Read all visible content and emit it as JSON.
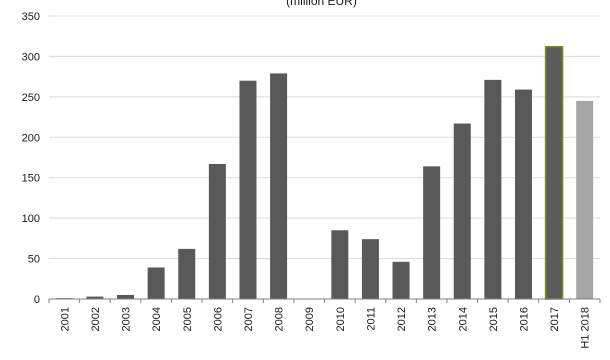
{
  "chart_data": {
    "type": "bar",
    "subtitle": "(million EUR)",
    "categories": [
      "2001",
      "2002",
      "2003",
      "2004",
      "2005",
      "2006",
      "2007",
      "2008",
      "2009",
      "2010",
      "2011",
      "2012",
      "2013",
      "2014",
      "2015",
      "2016",
      "2017",
      "H1 2018"
    ],
    "values": [
      1,
      3,
      5,
      39,
      62,
      167,
      270,
      279,
      0,
      85,
      74,
      46,
      164,
      217,
      271,
      259,
      312,
      245
    ],
    "ylim": [
      0,
      350
    ],
    "yticks": [
      0,
      50,
      100,
      150,
      200,
      250,
      300,
      350
    ],
    "grid": true,
    "colors": {
      "default": "#595959",
      "highlight": "#5c5c5c",
      "highlight_border": "#7a8a1c",
      "partial": "#a6a6a6",
      "grid": "#d9d9d9",
      "axis": "#7f7f7f"
    }
  }
}
